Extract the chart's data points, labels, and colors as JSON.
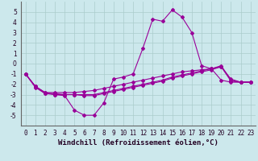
{
  "x_labels": [
    0,
    1,
    2,
    3,
    4,
    5,
    6,
    7,
    8,
    9,
    10,
    11,
    12,
    13,
    14,
    15,
    16,
    17,
    18,
    19,
    20,
    21,
    22,
    23
  ],
  "line1": {
    "x": [
      0,
      1,
      2,
      3,
      4,
      5,
      6,
      7,
      8,
      9,
      10,
      11,
      12,
      13,
      14,
      15,
      16,
      17,
      18,
      19,
      20,
      21,
      22,
      23
    ],
    "y": [
      -1.0,
      -2.2,
      -2.8,
      -3.0,
      -3.1,
      -4.5,
      -5.0,
      -5.0,
      -3.8,
      -1.5,
      -1.3,
      -1.0,
      1.5,
      4.3,
      4.1,
      5.2,
      4.5,
      3.0,
      -0.2,
      -0.5,
      -1.6,
      -1.8,
      -1.8,
      -1.8
    ]
  },
  "line2": {
    "x": [
      0,
      1,
      2,
      3,
      4,
      5,
      6,
      7,
      8,
      9,
      10,
      11,
      12,
      13,
      14,
      15,
      16,
      17,
      18,
      19,
      20,
      21,
      22,
      23
    ],
    "y": [
      -1.0,
      -2.2,
      -2.8,
      -2.8,
      -2.8,
      -2.8,
      -2.7,
      -2.6,
      -2.4,
      -2.2,
      -2.0,
      -1.8,
      -1.6,
      -1.4,
      -1.2,
      -1.0,
      -0.8,
      -0.7,
      -0.6,
      -0.5,
      -0.3,
      -1.7,
      -1.8,
      -1.8
    ]
  },
  "line3": {
    "x": [
      0,
      1,
      2,
      3,
      4,
      5,
      6,
      7,
      8,
      9,
      10,
      11,
      12,
      13,
      14,
      15,
      16,
      17,
      18,
      19,
      20,
      21,
      22,
      23
    ],
    "y": [
      -1.0,
      -2.2,
      -2.9,
      -2.9,
      -3.0,
      -3.0,
      -3.0,
      -3.0,
      -2.8,
      -2.6,
      -2.4,
      -2.2,
      -2.0,
      -1.8,
      -1.6,
      -1.3,
      -1.1,
      -0.9,
      -0.7,
      -0.5,
      -0.2,
      -1.6,
      -1.8,
      -1.8
    ]
  },
  "line4": {
    "x": [
      0,
      1,
      2,
      3,
      4,
      5,
      6,
      7,
      8,
      9,
      10,
      11,
      12,
      13,
      14,
      15,
      16,
      17,
      18,
      19,
      20,
      21,
      22,
      23
    ],
    "y": [
      -1.0,
      -2.3,
      -2.9,
      -3.0,
      -3.0,
      -3.0,
      -3.1,
      -3.1,
      -2.9,
      -2.7,
      -2.5,
      -2.3,
      -2.1,
      -1.9,
      -1.7,
      -1.4,
      -1.2,
      -1.0,
      -0.8,
      -0.6,
      -0.3,
      -1.5,
      -1.8,
      -1.8
    ]
  },
  "color": "#990099",
  "bg_color": "#cce8ec",
  "grid_color": "#aacccc",
  "ylim": [
    -6,
    6
  ],
  "yticks": [
    -5,
    -4,
    -3,
    -2,
    -1,
    0,
    1,
    2,
    3,
    4,
    5
  ],
  "xlabel": "Windchill (Refroidissement éolien,°C)",
  "marker": "D",
  "markersize": 2.0,
  "linewidth": 0.8,
  "xlabel_fontsize": 6.5,
  "tick_fontsize": 5.5
}
